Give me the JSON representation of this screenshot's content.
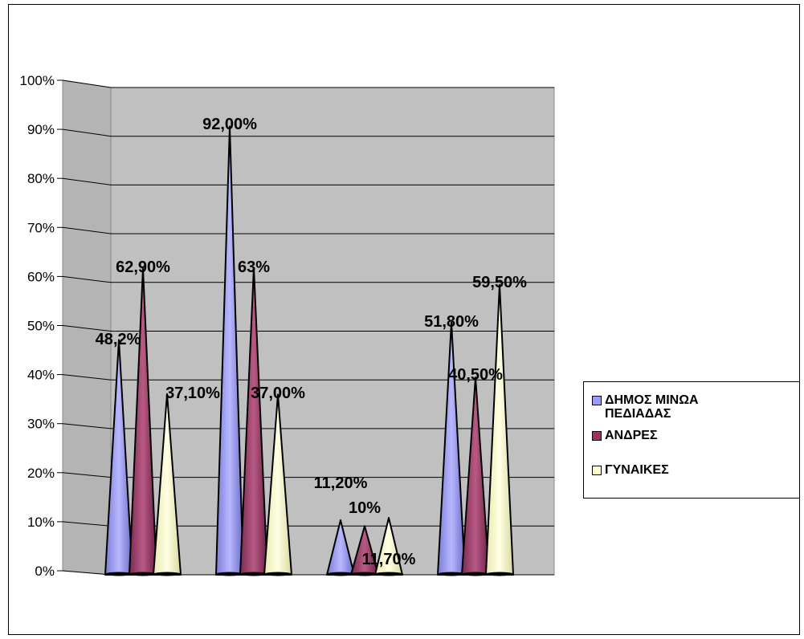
{
  "chart_data": {
    "type": "bar",
    "style": "3d-cone",
    "title": "",
    "xlabel": "",
    "ylabel": "",
    "ylim": [
      0,
      1
    ],
    "yticks": [
      "0%",
      "10%",
      "20%",
      "30%",
      "40%",
      "50%",
      "60%",
      "70%",
      "80%",
      "90%",
      "100%"
    ],
    "categories": [
      "",
      "",
      "",
      ""
    ],
    "grid": true,
    "legend_position": "right",
    "series": [
      {
        "name": "ΔΗΜΟΣ ΜΙΝΩΑ ΠΕΔΙΑΔΑΣ",
        "color": "#9999ff",
        "values": [
          0.482,
          0.92,
          0.112,
          0.518
        ],
        "labels": [
          "48,2%",
          "92,00%",
          "11,20%",
          "51,80%"
        ]
      },
      {
        "name": "ΑΝΔΡΕΣ",
        "color": "#993366",
        "values": [
          0.629,
          0.63,
          0.1,
          0.405
        ],
        "labels": [
          "62,90%",
          "63%",
          "10%",
          "40,50%"
        ]
      },
      {
        "name": "ΓΥΝΑΙΚΕΣ",
        "color": "#ffffcc",
        "values": [
          0.371,
          0.37,
          0.117,
          0.595
        ],
        "labels": [
          "37,10%",
          "37,00%",
          "11,70%",
          "59,50%"
        ]
      }
    ]
  },
  "legend": {
    "items": [
      {
        "label": "ΔΗΜΟΣ ΜΙΝΩΑ ΠΕΔΙΑΔΑΣ",
        "color": "#9999ff"
      },
      {
        "label": "ΑΝΔΡΕΣ",
        "color": "#993366"
      },
      {
        "label": "ΓΥΝΑΙΚΕΣ",
        "color": "#ffffcc"
      }
    ]
  }
}
